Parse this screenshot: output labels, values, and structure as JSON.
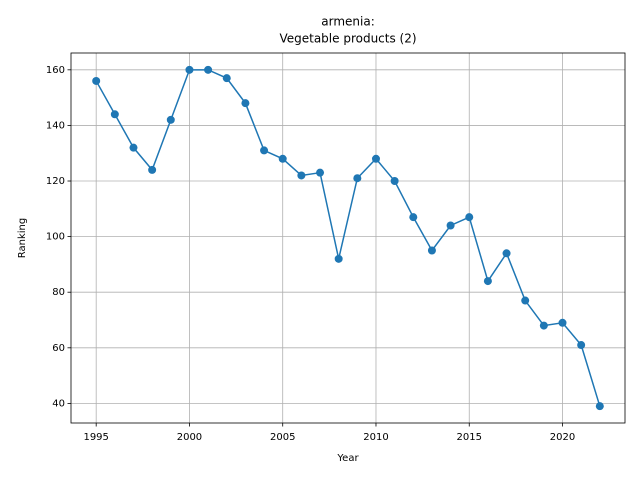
{
  "chart_data": {
    "type": "line",
    "title": [
      "armenia:",
      "Vegetable products (2)"
    ],
    "x_label": "Year",
    "y_label": "Ranking",
    "x": [
      1995,
      1996,
      1997,
      1998,
      1999,
      2000,
      2001,
      2002,
      2003,
      2004,
      2005,
      2006,
      2007,
      2008,
      2009,
      2010,
      2011,
      2012,
      2013,
      2014,
      2015,
      2016,
      2017,
      2018,
      2019,
      2020,
      2021,
      2022
    ],
    "series": [
      {
        "color": "#1f77b4",
        "values": [
          156,
          144,
          132,
          124,
          142,
          160,
          160,
          157,
          148,
          131,
          128,
          122,
          123,
          92,
          121,
          128,
          120,
          107,
          95,
          104,
          107,
          84,
          94,
          77,
          68,
          69,
          61,
          39
        ]
      }
    ],
    "xlim": [
      1993.65,
      2023.35
    ],
    "xticks": [
      1995,
      2000,
      2005,
      2010,
      2015,
      2020
    ],
    "ylim": [
      32.95,
      166.05
    ],
    "yticks": [
      40,
      60,
      80,
      100,
      120,
      140,
      160
    ],
    "grid": true
  }
}
